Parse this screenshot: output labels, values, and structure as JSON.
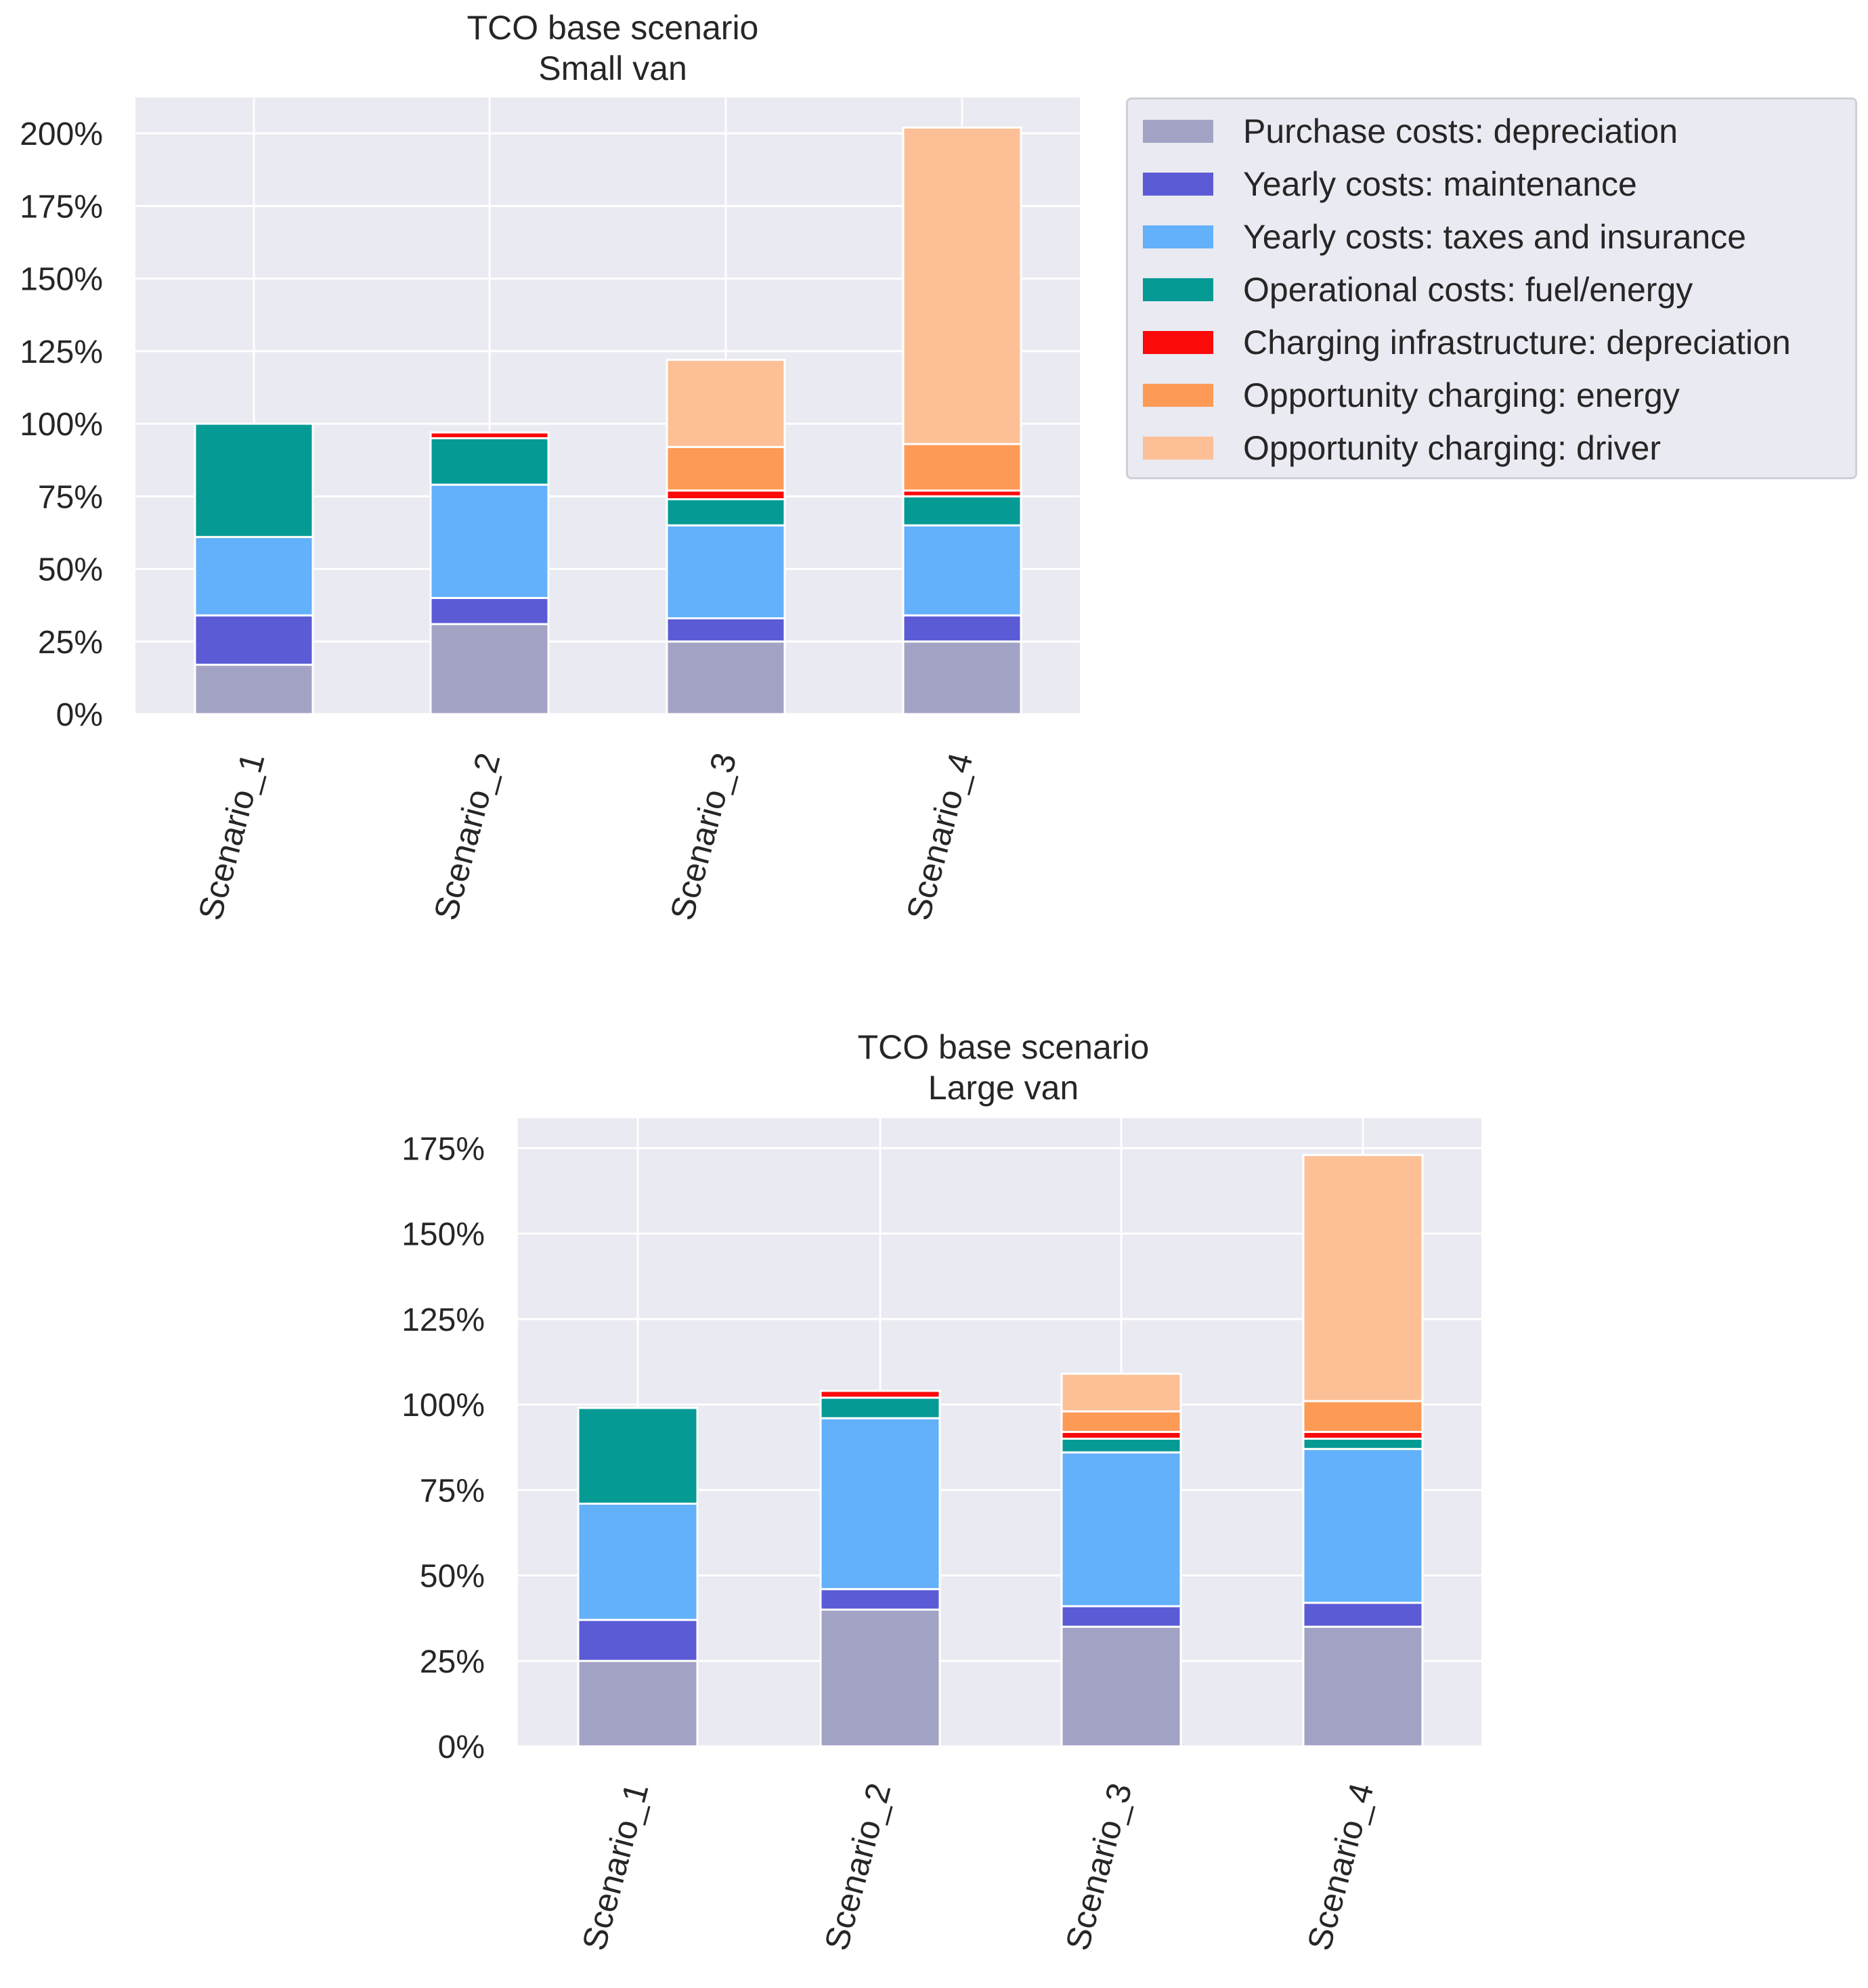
{
  "legend": {
    "items": [
      {
        "label": "Purchase costs: depreciation",
        "color": "#a2a3c4"
      },
      {
        "label": "Yearly costs: maintenance",
        "color": "#5b5bd6"
      },
      {
        "label": "Yearly costs: taxes and insurance",
        "color": "#63b0fb"
      },
      {
        "label": "Operational costs: fuel/energy",
        "color": "#069a95"
      },
      {
        "label": "Charging infrastructure: depreciation",
        "color": "#fb0a0a"
      },
      {
        "label": "Opportunity charging: energy",
        "color": "#fd9a55"
      },
      {
        "label": "Opportunity charging: driver",
        "color": "#fdc096"
      }
    ]
  },
  "chart_data": [
    {
      "type": "bar",
      "stacked": true,
      "title": "TCO base scenario",
      "subtitle": "Small van",
      "categories": [
        "Scenario_1",
        "Scenario_2",
        "Scenario_3",
        "Scenario_4"
      ],
      "yticks": [
        "0%",
        "25%",
        "50%",
        "75%",
        "100%",
        "125%",
        "150%",
        "175%",
        "200%"
      ],
      "ylim": [
        0,
        210
      ],
      "grid": true,
      "series": [
        {
          "name": "Purchase costs: depreciation",
          "values": [
            17,
            31,
            25,
            25
          ]
        },
        {
          "name": "Yearly costs: maintenance",
          "values": [
            17,
            9,
            8,
            9
          ]
        },
        {
          "name": "Yearly costs: taxes and insurance",
          "values": [
            27,
            39,
            32,
            31
          ]
        },
        {
          "name": "Operational costs: fuel/energy",
          "values": [
            39,
            16,
            9,
            10
          ]
        },
        {
          "name": "Charging infrastructure: depreciation",
          "values": [
            0,
            2,
            3,
            2
          ]
        },
        {
          "name": "Opportunity charging: energy",
          "values": [
            0,
            0,
            15,
            16
          ]
        },
        {
          "name": "Opportunity charging: driver",
          "values": [
            0,
            0,
            30,
            109
          ]
        }
      ]
    },
    {
      "type": "bar",
      "stacked": true,
      "title": "TCO base scenario",
      "subtitle": "Large van",
      "categories": [
        "Scenario_1",
        "Scenario_2",
        "Scenario_3",
        "Scenario_4"
      ],
      "yticks": [
        "0%",
        "25%",
        "50%",
        "75%",
        "100%",
        "125%",
        "150%",
        "175%"
      ],
      "ylim": [
        0,
        182
      ],
      "grid": true,
      "series": [
        {
          "name": "Purchase costs: depreciation",
          "values": [
            25,
            40,
            35,
            35
          ]
        },
        {
          "name": "Yearly costs: maintenance",
          "values": [
            12,
            6,
            6,
            7
          ]
        },
        {
          "name": "Yearly costs: taxes and insurance",
          "values": [
            34,
            50,
            45,
            45
          ]
        },
        {
          "name": "Operational costs: fuel/energy",
          "values": [
            28,
            6,
            4,
            3
          ]
        },
        {
          "name": "Charging infrastructure: depreciation",
          "values": [
            0,
            2,
            2,
            2
          ]
        },
        {
          "name": "Opportunity charging: energy",
          "values": [
            0,
            0,
            6,
            9
          ]
        },
        {
          "name": "Opportunity charging: driver",
          "values": [
            0,
            0,
            11,
            72
          ]
        }
      ]
    }
  ]
}
